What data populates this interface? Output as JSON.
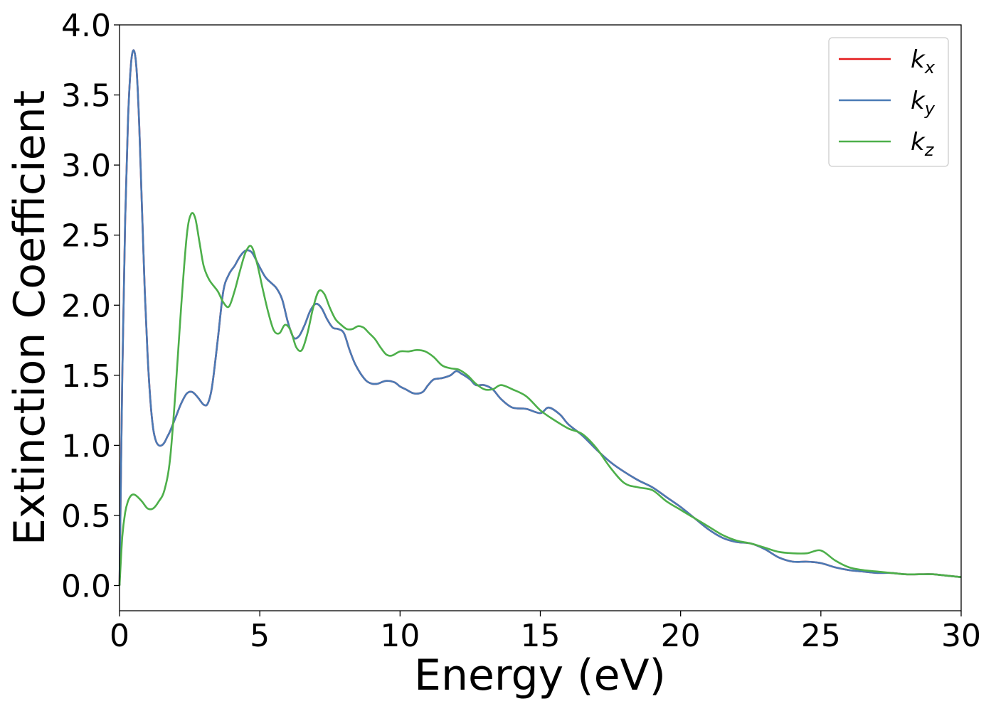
{
  "chart_data": {
    "type": "line",
    "title": "",
    "xlabel": "Energy (eV)",
    "ylabel": "Extinction Coefficient",
    "xlim": [
      0,
      30
    ],
    "ylim": [
      -0.18,
      4.0
    ],
    "xticks": [
      0,
      5,
      10,
      15,
      20,
      25,
      30
    ],
    "xtick_labels": [
      "0",
      "5",
      "10",
      "15",
      "20",
      "25",
      "30"
    ],
    "yticks": [
      0.0,
      0.5,
      1.0,
      1.5,
      2.0,
      2.5,
      3.0,
      3.5,
      4.0
    ],
    "ytick_labels": [
      "0.0",
      "0.5",
      "1.0",
      "1.5",
      "2.0",
      "2.5",
      "3.0",
      "3.5",
      "4.0"
    ],
    "grid": false,
    "legend_position": "top-right",
    "series": [
      {
        "name": "k",
        "name_sub": "x",
        "color": "#e41a1c",
        "x": [
          0,
          0.1,
          0.2,
          0.3,
          0.4,
          0.5,
          0.6,
          0.7,
          0.8,
          0.9,
          1.0,
          1.1,
          1.2,
          1.3,
          1.4,
          1.5,
          1.6,
          1.7,
          1.8,
          2.0,
          2.2,
          2.4,
          2.6,
          2.8,
          3.0,
          3.15,
          3.3,
          3.5,
          3.7,
          3.9,
          4.1,
          4.3,
          4.5,
          4.7,
          4.85,
          5.0,
          5.2,
          5.4,
          5.6,
          5.8,
          6.0,
          6.2,
          6.4,
          6.6,
          6.8,
          7.0,
          7.2,
          7.4,
          7.6,
          7.8,
          8.0,
          8.2,
          8.4,
          8.6,
          8.8,
          9.0,
          9.2,
          9.5,
          9.8,
          10.0,
          10.2,
          10.5,
          10.8,
          11.0,
          11.2,
          11.5,
          11.8,
          12.0,
          12.2,
          12.5,
          12.7,
          13.0,
          13.3,
          13.6,
          14.0,
          14.5,
          15.0,
          15.3,
          15.7,
          16.0,
          16.5,
          17.0,
          17.5,
          18.0,
          18.5,
          19.0,
          19.5,
          20.0,
          20.5,
          21.0,
          21.5,
          22.0,
          22.5,
          23.0,
          23.5,
          24.0,
          24.5,
          25.0,
          25.5,
          26.0,
          26.5,
          27.0,
          27.5,
          28.0,
          28.5,
          29.0,
          29.5,
          30.0
        ],
        "y": [
          0.0,
          1.5,
          2.6,
          3.3,
          3.7,
          3.82,
          3.7,
          3.3,
          2.7,
          2.1,
          1.65,
          1.32,
          1.12,
          1.03,
          1.0,
          1.0,
          1.02,
          1.06,
          1.1,
          1.2,
          1.3,
          1.37,
          1.38,
          1.34,
          1.29,
          1.3,
          1.42,
          1.75,
          2.1,
          2.22,
          2.28,
          2.35,
          2.39,
          2.38,
          2.33,
          2.27,
          2.2,
          2.16,
          2.12,
          2.04,
          1.88,
          1.77,
          1.78,
          1.86,
          1.96,
          2.01,
          1.98,
          1.9,
          1.84,
          1.83,
          1.8,
          1.68,
          1.58,
          1.51,
          1.46,
          1.44,
          1.44,
          1.46,
          1.45,
          1.42,
          1.4,
          1.37,
          1.38,
          1.43,
          1.47,
          1.48,
          1.5,
          1.53,
          1.51,
          1.47,
          1.43,
          1.43,
          1.4,
          1.33,
          1.27,
          1.26,
          1.23,
          1.27,
          1.22,
          1.15,
          1.07,
          0.97,
          0.88,
          0.81,
          0.75,
          0.7,
          0.63,
          0.56,
          0.48,
          0.4,
          0.34,
          0.31,
          0.3,
          0.26,
          0.2,
          0.17,
          0.17,
          0.16,
          0.13,
          0.11,
          0.1,
          0.09,
          0.09,
          0.08,
          0.08,
          0.08,
          0.07,
          0.06
        ]
      },
      {
        "name": "k",
        "name_sub": "y",
        "color": "#4a7ab5",
        "x": [
          0,
          0.1,
          0.2,
          0.3,
          0.4,
          0.5,
          0.6,
          0.7,
          0.8,
          0.9,
          1.0,
          1.1,
          1.2,
          1.3,
          1.4,
          1.5,
          1.6,
          1.7,
          1.8,
          2.0,
          2.2,
          2.4,
          2.6,
          2.8,
          3.0,
          3.15,
          3.3,
          3.5,
          3.7,
          3.9,
          4.1,
          4.3,
          4.5,
          4.7,
          4.85,
          5.0,
          5.2,
          5.4,
          5.6,
          5.8,
          6.0,
          6.2,
          6.4,
          6.6,
          6.8,
          7.0,
          7.2,
          7.4,
          7.6,
          7.8,
          8.0,
          8.2,
          8.4,
          8.6,
          8.8,
          9.0,
          9.2,
          9.5,
          9.8,
          10.0,
          10.2,
          10.5,
          10.8,
          11.0,
          11.2,
          11.5,
          11.8,
          12.0,
          12.2,
          12.5,
          12.7,
          13.0,
          13.3,
          13.6,
          14.0,
          14.5,
          15.0,
          15.3,
          15.7,
          16.0,
          16.5,
          17.0,
          17.5,
          18.0,
          18.5,
          19.0,
          19.5,
          20.0,
          20.5,
          21.0,
          21.5,
          22.0,
          22.5,
          23.0,
          23.5,
          24.0,
          24.5,
          25.0,
          25.5,
          26.0,
          26.5,
          27.0,
          27.5,
          28.0,
          28.5,
          29.0,
          29.5,
          30.0
        ],
        "y": [
          0.0,
          1.5,
          2.6,
          3.3,
          3.7,
          3.82,
          3.7,
          3.3,
          2.7,
          2.1,
          1.65,
          1.32,
          1.12,
          1.03,
          1.0,
          1.0,
          1.02,
          1.06,
          1.1,
          1.2,
          1.3,
          1.37,
          1.38,
          1.34,
          1.29,
          1.3,
          1.42,
          1.75,
          2.1,
          2.22,
          2.28,
          2.35,
          2.39,
          2.38,
          2.33,
          2.27,
          2.2,
          2.16,
          2.12,
          2.04,
          1.88,
          1.77,
          1.78,
          1.86,
          1.96,
          2.01,
          1.98,
          1.9,
          1.84,
          1.83,
          1.8,
          1.68,
          1.58,
          1.51,
          1.46,
          1.44,
          1.44,
          1.46,
          1.45,
          1.42,
          1.4,
          1.37,
          1.38,
          1.43,
          1.47,
          1.48,
          1.5,
          1.53,
          1.51,
          1.47,
          1.43,
          1.43,
          1.4,
          1.33,
          1.27,
          1.26,
          1.23,
          1.27,
          1.22,
          1.15,
          1.07,
          0.97,
          0.88,
          0.81,
          0.75,
          0.7,
          0.63,
          0.56,
          0.48,
          0.4,
          0.34,
          0.31,
          0.3,
          0.26,
          0.2,
          0.17,
          0.17,
          0.16,
          0.13,
          0.11,
          0.1,
          0.09,
          0.09,
          0.08,
          0.08,
          0.08,
          0.07,
          0.06
        ]
      },
      {
        "name": "k",
        "name_sub": "z",
        "color": "#4daf4a",
        "x": [
          0,
          0.1,
          0.2,
          0.3,
          0.4,
          0.5,
          0.6,
          0.8,
          1.0,
          1.2,
          1.4,
          1.6,
          1.8,
          2.0,
          2.2,
          2.4,
          2.55,
          2.7,
          2.85,
          3.0,
          3.2,
          3.5,
          3.7,
          3.9,
          4.1,
          4.3,
          4.5,
          4.7,
          4.9,
          5.1,
          5.3,
          5.5,
          5.7,
          5.9,
          6.1,
          6.3,
          6.5,
          6.7,
          6.9,
          7.1,
          7.3,
          7.5,
          7.7,
          7.9,
          8.1,
          8.3,
          8.5,
          8.7,
          8.9,
          9.1,
          9.3,
          9.5,
          9.7,
          10.0,
          10.3,
          10.6,
          10.9,
          11.2,
          11.5,
          11.8,
          12.1,
          12.4,
          12.7,
          13.0,
          13.3,
          13.6,
          14.0,
          14.5,
          15.0,
          15.5,
          16.0,
          16.5,
          17.0,
          17.5,
          18.0,
          18.5,
          19.0,
          19.5,
          20.0,
          20.5,
          21.0,
          21.5,
          22.0,
          22.5,
          23.0,
          23.5,
          24.0,
          24.5,
          25.0,
          25.5,
          26.0,
          26.5,
          27.0,
          27.5,
          28.0,
          28.5,
          29.0,
          29.5,
          30.0
        ],
        "y": [
          0.0,
          0.35,
          0.52,
          0.6,
          0.64,
          0.65,
          0.64,
          0.6,
          0.55,
          0.55,
          0.6,
          0.68,
          0.9,
          1.4,
          2.0,
          2.5,
          2.65,
          2.62,
          2.45,
          2.28,
          2.18,
          2.1,
          2.02,
          1.99,
          2.1,
          2.25,
          2.38,
          2.42,
          2.3,
          2.12,
          1.95,
          1.82,
          1.8,
          1.86,
          1.82,
          1.7,
          1.68,
          1.8,
          1.98,
          2.1,
          2.08,
          1.98,
          1.9,
          1.86,
          1.83,
          1.83,
          1.85,
          1.84,
          1.8,
          1.76,
          1.7,
          1.65,
          1.64,
          1.67,
          1.67,
          1.68,
          1.67,
          1.63,
          1.57,
          1.55,
          1.54,
          1.5,
          1.44,
          1.4,
          1.4,
          1.43,
          1.4,
          1.35,
          1.25,
          1.18,
          1.12,
          1.08,
          0.98,
          0.84,
          0.73,
          0.7,
          0.68,
          0.6,
          0.54,
          0.48,
          0.42,
          0.36,
          0.32,
          0.3,
          0.27,
          0.24,
          0.23,
          0.23,
          0.25,
          0.18,
          0.13,
          0.11,
          0.1,
          0.09,
          0.08,
          0.08,
          0.08,
          0.07,
          0.06
        ]
      }
    ]
  }
}
